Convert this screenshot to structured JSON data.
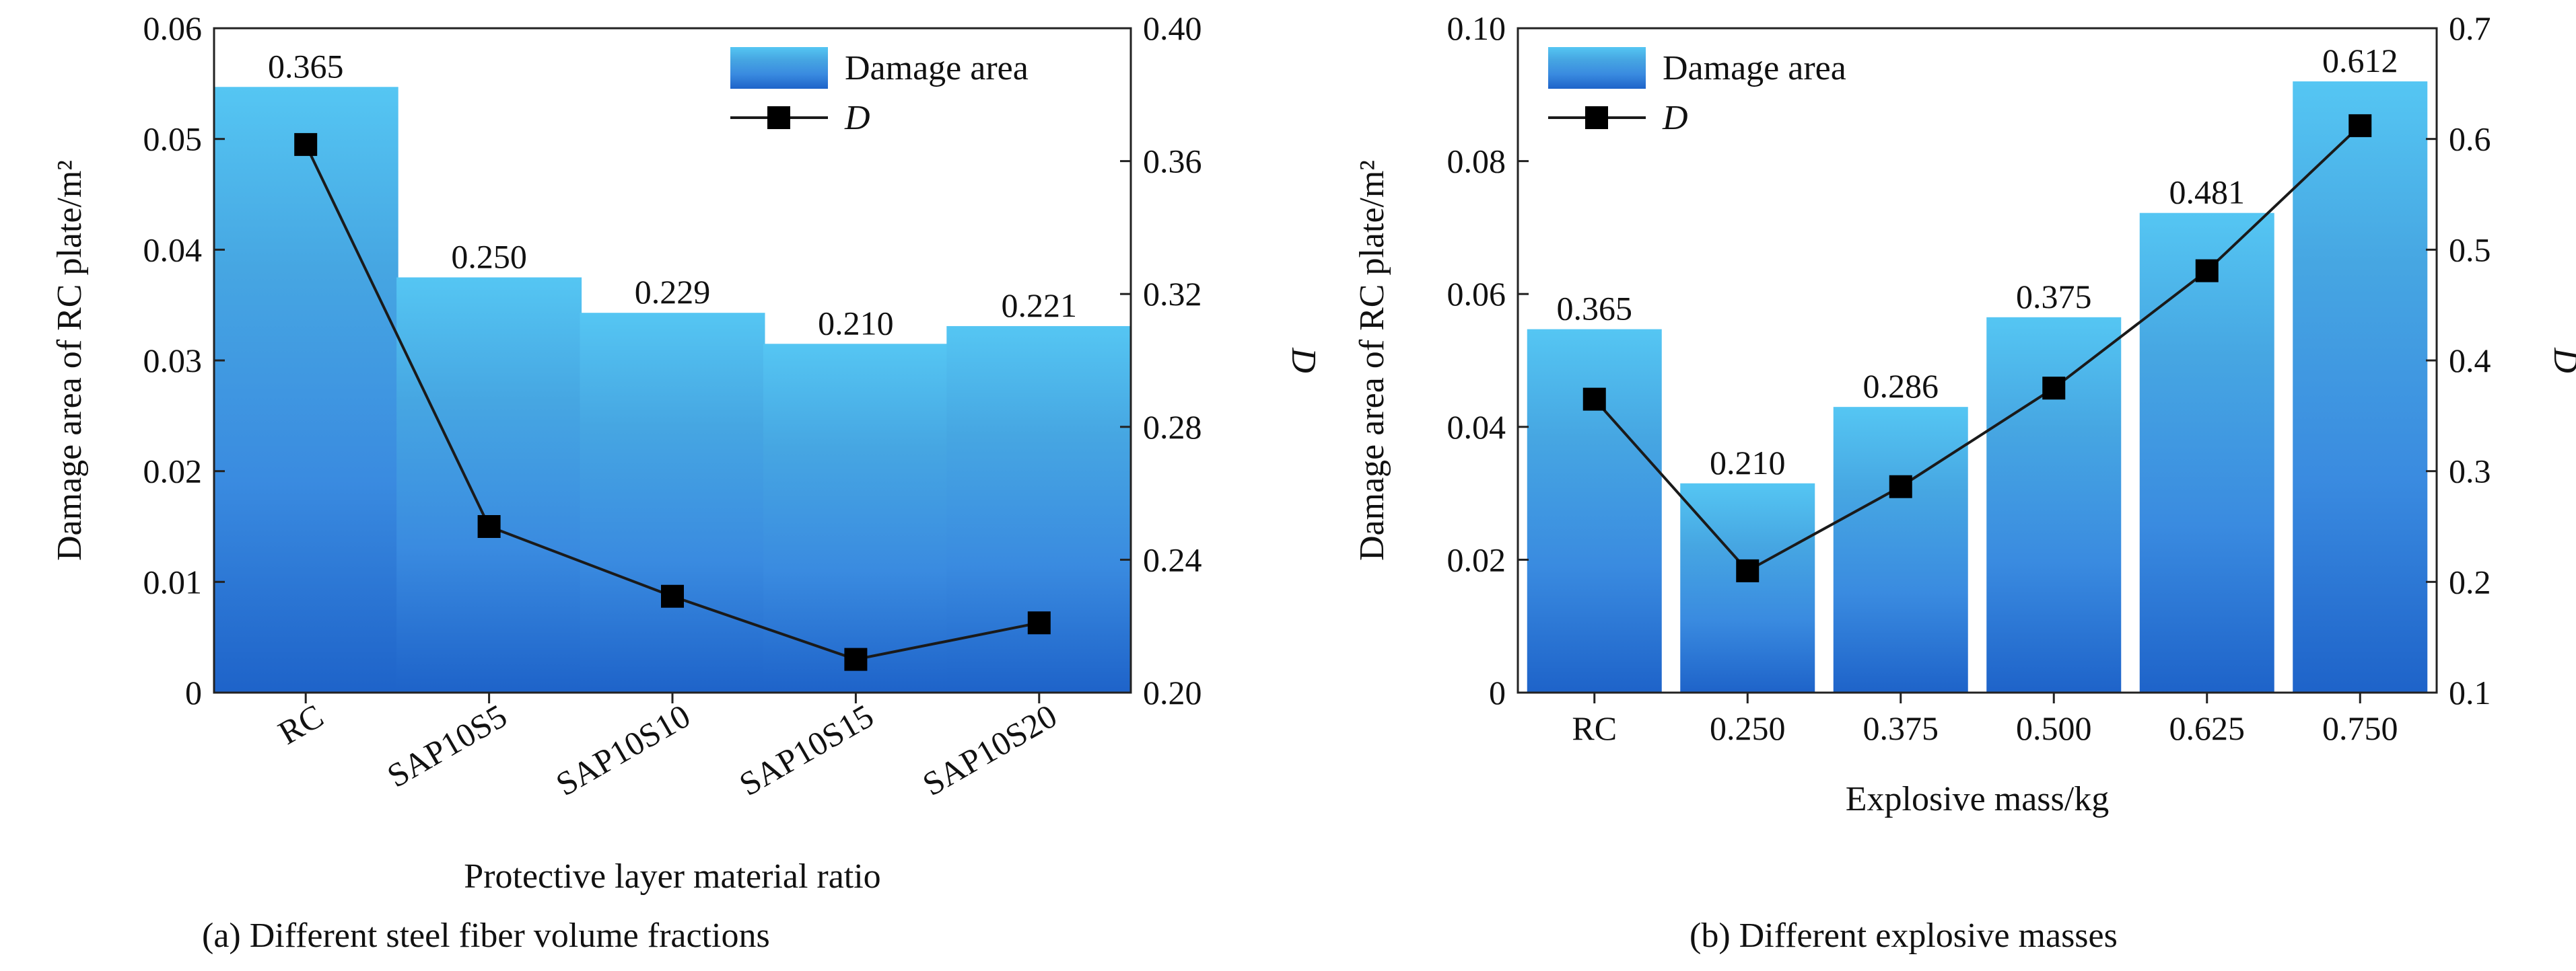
{
  "colors": {
    "bar_gradient": [
      "#1e63c9",
      "#3a8be0",
      "#46a6e2",
      "#55c6f3"
    ],
    "line": "#1a1a1a",
    "marker": "#000000",
    "axis": "#222222"
  },
  "captions": {
    "a": "(a) Different steel fiber volume fractions",
    "b": "(b) Different explosive masses"
  },
  "chart_data": [
    {
      "type": "bar",
      "categories": [
        "RC",
        "SAP10S5",
        "SAP10S10",
        "SAP10S15",
        "SAP10S20"
      ],
      "series": [
        {
          "name": "Damage area",
          "axis": "left",
          "type": "bar",
          "values": [
            0.0547,
            0.0375,
            0.0343,
            0.0315,
            0.0331
          ]
        },
        {
          "name": "D",
          "axis": "right",
          "type": "line",
          "values": [
            0.365,
            0.25,
            0.229,
            0.21,
            0.221
          ]
        }
      ],
      "data_labels": [
        "0.365",
        "0.250",
        "0.229",
        "0.210",
        "0.221"
      ],
      "xlabel": "Protective layer material ratio",
      "ylabel": "Damage area of RC plate/m²",
      "y2label": "D",
      "ylim": [
        0,
        0.06
      ],
      "y2lim": [
        0.2,
        0.4
      ],
      "yticks": [
        "0",
        "0.01",
        "0.02",
        "0.03",
        "0.04",
        "0.05",
        "0.06"
      ],
      "y2ticks": [
        "0.20",
        "0.24",
        "0.28",
        "0.32",
        "0.36",
        "0.40"
      ],
      "x_tick_rotation": "angled",
      "legend": [
        "Damage area",
        "D"
      ],
      "legend_position": "top-right",
      "grid": false
    },
    {
      "type": "bar",
      "categories": [
        "RC",
        "0.250",
        "0.375",
        "0.500",
        "0.625",
        "0.750"
      ],
      "series": [
        {
          "name": "Damage area",
          "axis": "left",
          "type": "bar",
          "values": [
            0.0547,
            0.0315,
            0.043,
            0.0565,
            0.0722,
            0.092
          ]
        },
        {
          "name": "D",
          "axis": "right",
          "type": "line",
          "values": [
            0.365,
            0.21,
            0.286,
            0.375,
            0.481,
            0.612
          ]
        }
      ],
      "data_labels": [
        "0.365",
        "0.210",
        "0.286",
        "0.375",
        "0.481",
        "0.612"
      ],
      "xlabel": "Explosive mass/kg",
      "ylabel": "Damage area of RC plate/m²",
      "y2label": "D",
      "ylim": [
        0,
        0.1
      ],
      "y2lim": [
        0.1,
        0.7
      ],
      "yticks": [
        "0",
        "0.02",
        "0.04",
        "0.06",
        "0.08",
        "0.10"
      ],
      "y2ticks": [
        "0.1",
        "0.2",
        "0.3",
        "0.4",
        "0.5",
        "0.6",
        "0.7"
      ],
      "x_tick_rotation": "none",
      "legend": [
        "Damage area",
        "D"
      ],
      "legend_position": "top-left",
      "grid": false
    }
  ]
}
